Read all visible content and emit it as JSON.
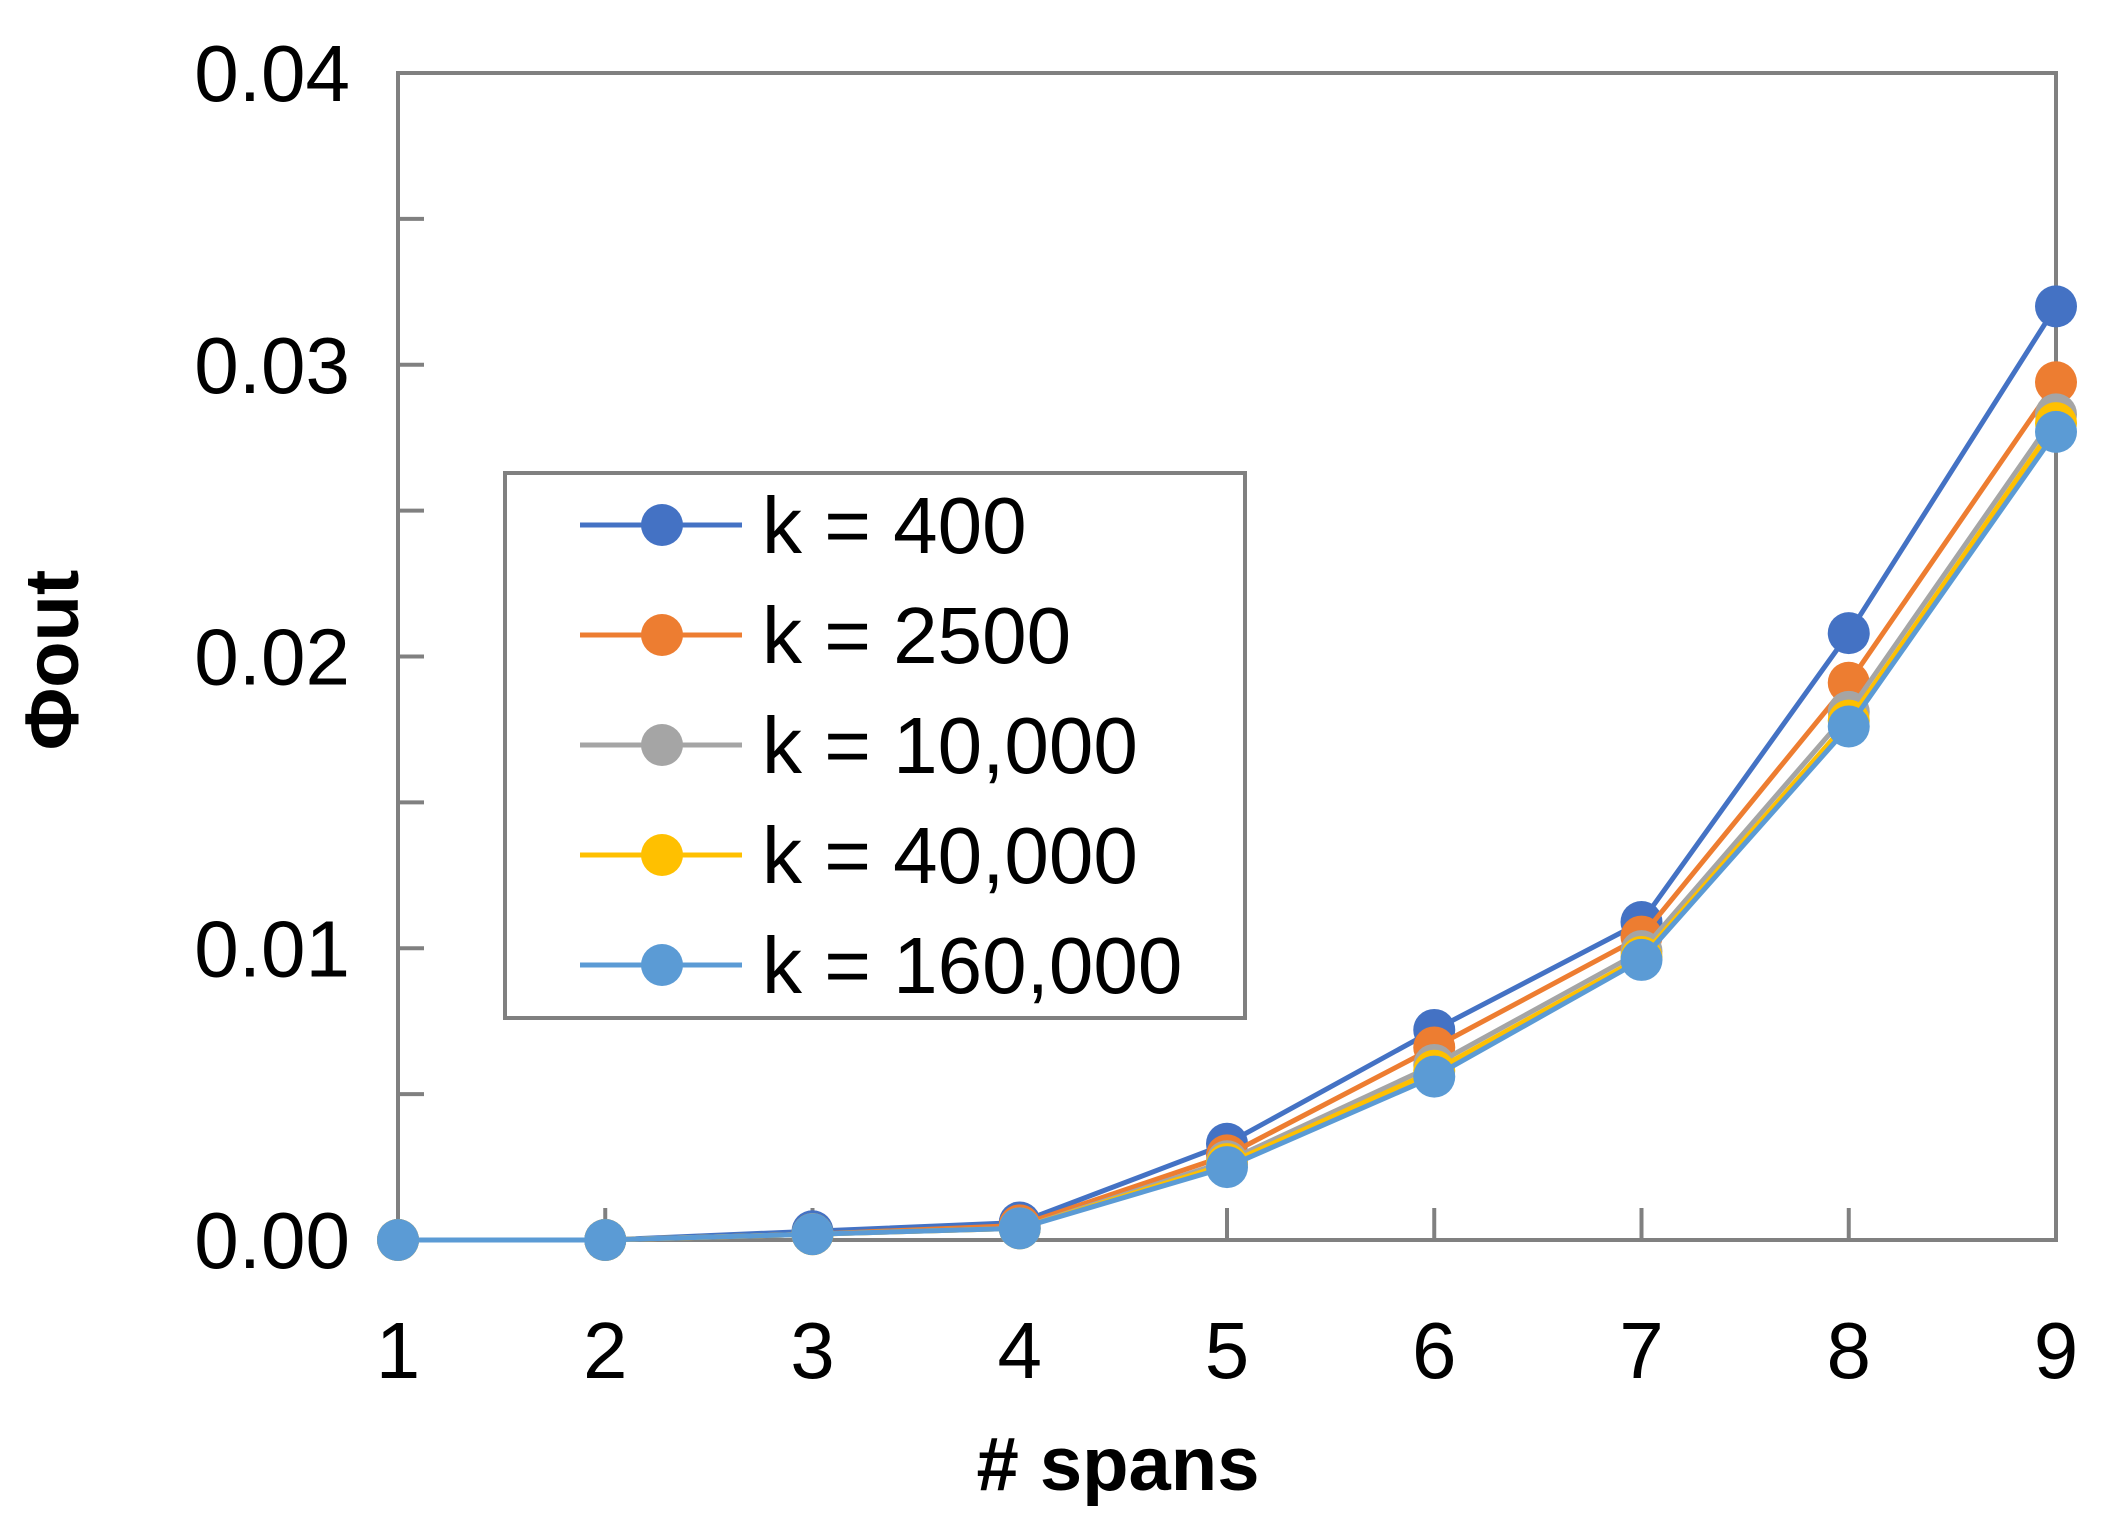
{
  "chart_data": {
    "type": "line",
    "title": "",
    "xlabel": "# spans",
    "ylabel": "Φout",
    "x": [
      1,
      2,
      3,
      4,
      5,
      6,
      7,
      8,
      9
    ],
    "x_tick_labels": [
      "1",
      "2",
      "3",
      "4",
      "5",
      "6",
      "7",
      "8",
      "9"
    ],
    "y_tick_labels": [
      "0.00",
      "0.01",
      "0.02",
      "0.03",
      "0.04"
    ],
    "y_ticks": [
      0,
      0.01,
      0.02,
      0.03,
      0.04
    ],
    "ylim": [
      0,
      0.04
    ],
    "xlim": [
      1,
      9
    ],
    "grid": false,
    "legend_position": "left-center",
    "series": [
      {
        "name": "k = 400",
        "color": "#4472c4",
        "values": [
          0,
          0,
          0.0003,
          0.0006,
          0.0033,
          0.0072,
          0.0109,
          0.0208,
          0.032
        ]
      },
      {
        "name": "k = 2500",
        "color": "#ed7d31",
        "values": [
          0,
          0,
          0.0002,
          0.0005,
          0.0029,
          0.0066,
          0.0104,
          0.0191,
          0.0294
        ]
      },
      {
        "name": "k = 10,000",
        "color": "#a5a5a5",
        "values": [
          0,
          0,
          0.0002,
          0.0004,
          0.0027,
          0.006,
          0.0099,
          0.0181,
          0.0283
        ]
      },
      {
        "name": "k = 40,000",
        "color": "#ffc000",
        "values": [
          0,
          0,
          0.0002,
          0.0004,
          0.0026,
          0.0058,
          0.0097,
          0.0178,
          0.028
        ]
      },
      {
        "name": "k = 160,000",
        "color": "#5b9bd5",
        "values": [
          0,
          0,
          0.0002,
          0.0004,
          0.0025,
          0.0056,
          0.0096,
          0.0176,
          0.0277
        ]
      }
    ]
  }
}
